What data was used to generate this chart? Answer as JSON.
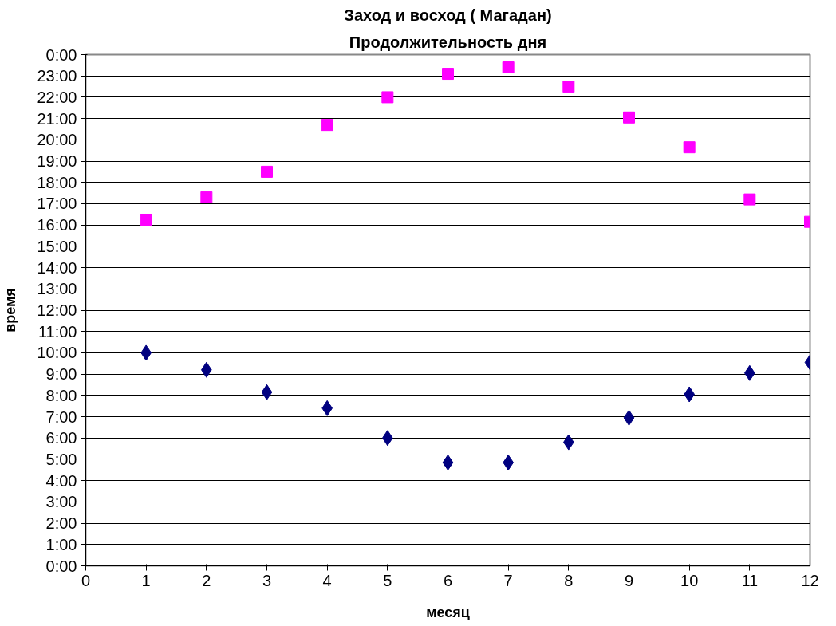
{
  "chart_data": {
    "type": "scatter",
    "title": "Заход и восход ( Магадан)",
    "subtitle": "Продолжительность дня",
    "xlabel": "месяц",
    "ylabel": "время",
    "x": [
      1,
      2,
      3,
      4,
      5,
      6,
      7,
      8,
      9,
      10,
      11,
      12
    ],
    "series": [
      {
        "color": "#ff00ff",
        "marker": "square",
        "values": [
          16.25,
          17.3,
          18.5,
          20.7,
          22.0,
          23.1,
          23.4,
          22.5,
          21.05,
          19.65,
          17.2,
          16.15
        ]
      },
      {
        "color": "#000080",
        "marker": "diamond",
        "values": [
          10.0,
          9.2,
          8.15,
          7.4,
          6.0,
          4.85,
          4.85,
          5.8,
          6.95,
          8.05,
          9.05,
          9.55
        ]
      }
    ],
    "xlim": [
      0,
      12
    ],
    "xticks": [
      0,
      1,
      2,
      3,
      4,
      5,
      6,
      7,
      8,
      9,
      10,
      11,
      12
    ],
    "ylim": [
      0,
      24
    ],
    "yticks": [
      {
        "value": 0,
        "label": "0:00"
      },
      {
        "value": 1,
        "label": "1:00"
      },
      {
        "value": 2,
        "label": "2:00"
      },
      {
        "value": 3,
        "label": "3:00"
      },
      {
        "value": 4,
        "label": "4:00"
      },
      {
        "value": 5,
        "label": "5:00"
      },
      {
        "value": 6,
        "label": "6:00"
      },
      {
        "value": 7,
        "label": "7:00"
      },
      {
        "value": 8,
        "label": "8:00"
      },
      {
        "value": 9,
        "label": "9:00"
      },
      {
        "value": 10,
        "label": "10:00"
      },
      {
        "value": 11,
        "label": "11:00"
      },
      {
        "value": 12,
        "label": "12:00"
      },
      {
        "value": 13,
        "label": "13:00"
      },
      {
        "value": 14,
        "label": "14:00"
      },
      {
        "value": 15,
        "label": "15:00"
      },
      {
        "value": 16,
        "label": "16:00"
      },
      {
        "value": 17,
        "label": "17:00"
      },
      {
        "value": 18,
        "label": "18:00"
      },
      {
        "value": 19,
        "label": "19:00"
      },
      {
        "value": 20,
        "label": "20:00"
      },
      {
        "value": 21,
        "label": "21:00"
      },
      {
        "value": 22,
        "label": "22:00"
      },
      {
        "value": 23,
        "label": "23:00"
      },
      {
        "value": 24,
        "label": "0:00"
      }
    ],
    "grid": "y"
  }
}
